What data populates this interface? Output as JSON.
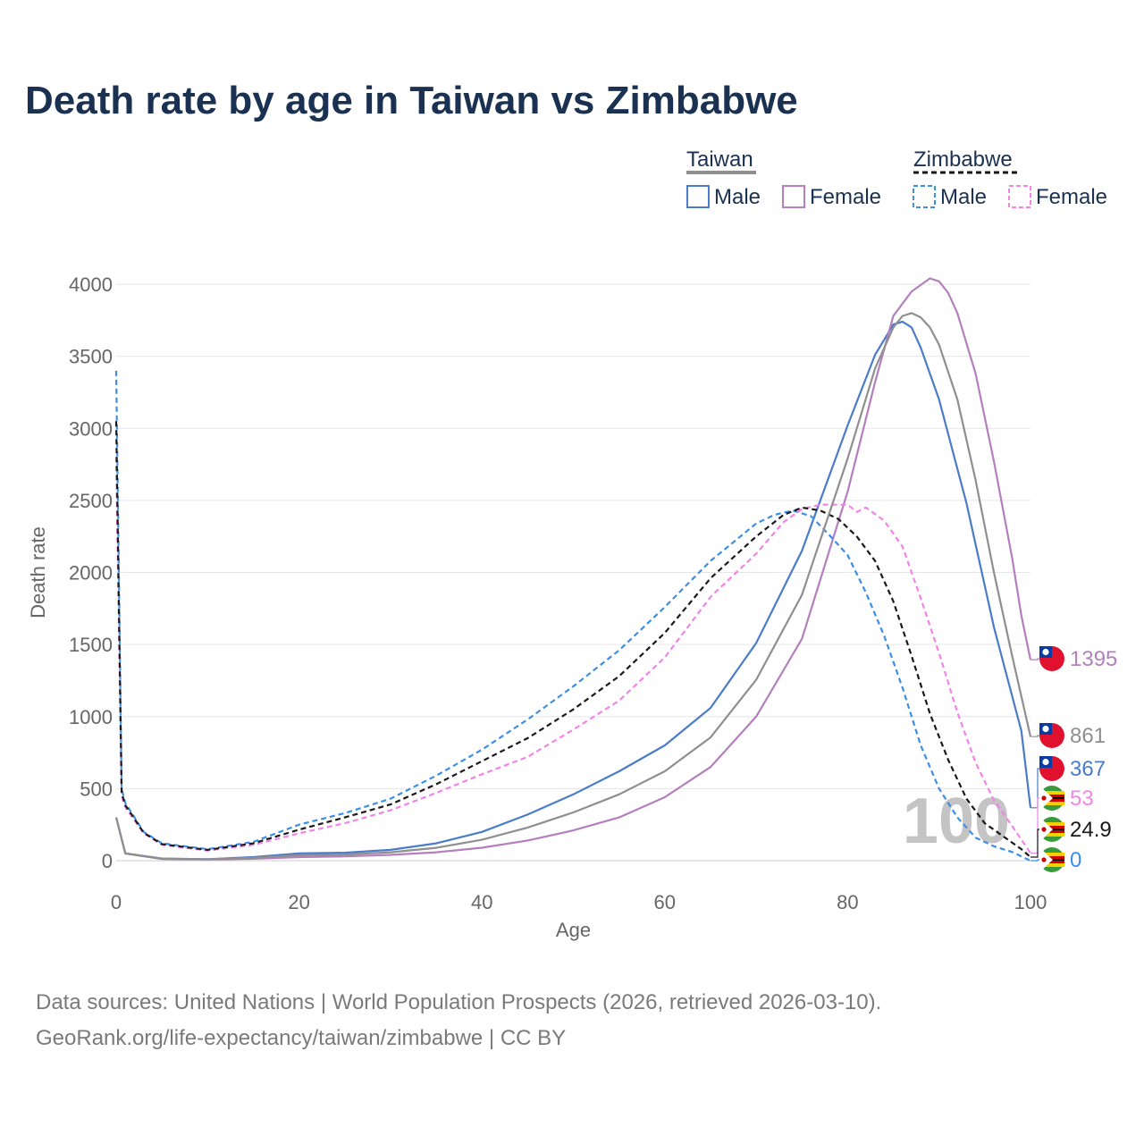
{
  "chart_data": {
    "type": "line",
    "title": "Death rate by age in Taiwan vs Zimbabwe",
    "xlabel": "Age",
    "ylabel": "Death rate",
    "xlim": [
      0,
      100
    ],
    "ylim": [
      0,
      4000
    ],
    "x_ticks": [
      "0",
      "20",
      "40",
      "60",
      "80",
      "100"
    ],
    "y_ticks": [
      "0",
      "500",
      "1000",
      "1500",
      "2000",
      "2500",
      "3000",
      "3500",
      "4000"
    ],
    "watermark_age": "100",
    "legend": {
      "groups": [
        {
          "country": "Taiwan",
          "items": [
            "Male",
            "Female"
          ]
        },
        {
          "country": "Zimbabwe",
          "items": [
            "Male",
            "Female"
          ]
        }
      ]
    },
    "series": [
      {
        "name": "Taiwan Male",
        "country": "Taiwan",
        "sex": "Male",
        "dashed": false,
        "color": "#4a7cc9",
        "end_label": "367",
        "points": [
          [
            0,
            300
          ],
          [
            1,
            50
          ],
          [
            5,
            15
          ],
          [
            10,
            10
          ],
          [
            15,
            25
          ],
          [
            20,
            50
          ],
          [
            25,
            55
          ],
          [
            30,
            75
          ],
          [
            35,
            120
          ],
          [
            40,
            200
          ],
          [
            45,
            320
          ],
          [
            50,
            460
          ],
          [
            55,
            620
          ],
          [
            60,
            800
          ],
          [
            65,
            1060
          ],
          [
            70,
            1510
          ],
          [
            75,
            2150
          ],
          [
            80,
            3020
          ],
          [
            83,
            3510
          ],
          [
            85,
            3720
          ],
          [
            86,
            3740
          ],
          [
            87,
            3700
          ],
          [
            88,
            3560
          ],
          [
            90,
            3200
          ],
          [
            93,
            2480
          ],
          [
            96,
            1620
          ],
          [
            99,
            900
          ],
          [
            100,
            367
          ]
        ]
      },
      {
        "name": "Taiwan Female",
        "country": "Taiwan",
        "sex": "Female",
        "dashed": false,
        "color": "#b47fbd",
        "end_label": "1395",
        "points": [
          [
            0,
            300
          ],
          [
            1,
            50
          ],
          [
            5,
            12
          ],
          [
            10,
            8
          ],
          [
            15,
            13
          ],
          [
            20,
            25
          ],
          [
            25,
            30
          ],
          [
            30,
            40
          ],
          [
            35,
            58
          ],
          [
            40,
            90
          ],
          [
            45,
            140
          ],
          [
            50,
            210
          ],
          [
            55,
            300
          ],
          [
            60,
            440
          ],
          [
            65,
            650
          ],
          [
            70,
            1000
          ],
          [
            75,
            1540
          ],
          [
            80,
            2560
          ],
          [
            83,
            3320
          ],
          [
            85,
            3780
          ],
          [
            87,
            3950
          ],
          [
            89,
            4040
          ],
          [
            90,
            4020
          ],
          [
            91,
            3940
          ],
          [
            92,
            3800
          ],
          [
            94,
            3380
          ],
          [
            96,
            2770
          ],
          [
            98,
            2100
          ],
          [
            99,
            1700
          ],
          [
            100,
            1395
          ]
        ]
      },
      {
        "name": "Zimbabwe Male",
        "country": "Zimbabwe",
        "sex": "Male",
        "dashed": true,
        "color": "#3d8ee6",
        "end_label": "0",
        "points": [
          [
            0,
            3400
          ],
          [
            0.6,
            500
          ],
          [
            1,
            400
          ],
          [
            2,
            300
          ],
          [
            3,
            200
          ],
          [
            5,
            120
          ],
          [
            10,
            80
          ],
          [
            15,
            130
          ],
          [
            20,
            250
          ],
          [
            25,
            330
          ],
          [
            30,
            430
          ],
          [
            35,
            590
          ],
          [
            40,
            770
          ],
          [
            45,
            980
          ],
          [
            50,
            1210
          ],
          [
            55,
            1460
          ],
          [
            60,
            1760
          ],
          [
            65,
            2080
          ],
          [
            70,
            2340
          ],
          [
            72,
            2400
          ],
          [
            74,
            2430
          ],
          [
            76,
            2390
          ],
          [
            78,
            2260
          ],
          [
            80,
            2120
          ],
          [
            82,
            1860
          ],
          [
            84,
            1560
          ],
          [
            86,
            1200
          ],
          [
            88,
            800
          ],
          [
            90,
            500
          ],
          [
            92,
            300
          ],
          [
            94,
            160
          ],
          [
            96,
            100
          ],
          [
            98,
            60
          ],
          [
            100,
            0
          ]
        ]
      },
      {
        "name": "Zimbabwe Female",
        "country": "Zimbabwe",
        "sex": "Female",
        "dashed": true,
        "color": "#f483e8",
        "end_label": "53",
        "points": [
          [
            0,
            2800
          ],
          [
            0.6,
            450
          ],
          [
            1,
            370
          ],
          [
            2,
            280
          ],
          [
            3,
            190
          ],
          [
            5,
            110
          ],
          [
            10,
            70
          ],
          [
            15,
            110
          ],
          [
            20,
            190
          ],
          [
            25,
            260
          ],
          [
            30,
            350
          ],
          [
            35,
            470
          ],
          [
            40,
            600
          ],
          [
            45,
            720
          ],
          [
            50,
            910
          ],
          [
            55,
            1110
          ],
          [
            60,
            1410
          ],
          [
            65,
            1830
          ],
          [
            70,
            2130
          ],
          [
            73,
            2350
          ],
          [
            75,
            2440
          ],
          [
            77,
            2470
          ],
          [
            80,
            2470
          ],
          [
            81,
            2420
          ],
          [
            82,
            2450
          ],
          [
            84,
            2360
          ],
          [
            86,
            2180
          ],
          [
            88,
            1820
          ],
          [
            90,
            1440
          ],
          [
            92,
            1030
          ],
          [
            94,
            680
          ],
          [
            96,
            420
          ],
          [
            98,
            240
          ],
          [
            100,
            53
          ]
        ]
      },
      {
        "name": "Zimbabwe Average",
        "country": "Zimbabwe",
        "sex": "Both",
        "dashed": true,
        "color": "#1a1a1a",
        "end_label": "24.9",
        "points": [
          [
            0,
            3050
          ],
          [
            0.6,
            470
          ],
          [
            1,
            385
          ],
          [
            2,
            290
          ],
          [
            3,
            195
          ],
          [
            5,
            115
          ],
          [
            10,
            75
          ],
          [
            15,
            120
          ],
          [
            20,
            215
          ],
          [
            25,
            300
          ],
          [
            30,
            390
          ],
          [
            35,
            530
          ],
          [
            40,
            690
          ],
          [
            45,
            850
          ],
          [
            50,
            1050
          ],
          [
            55,
            1280
          ],
          [
            60,
            1580
          ],
          [
            65,
            1960
          ],
          [
            70,
            2250
          ],
          [
            73,
            2400
          ],
          [
            75,
            2450
          ],
          [
            77,
            2430
          ],
          [
            79,
            2370
          ],
          [
            81,
            2250
          ],
          [
            83,
            2080
          ],
          [
            85,
            1800
          ],
          [
            87,
            1420
          ],
          [
            89,
            1020
          ],
          [
            91,
            700
          ],
          [
            93,
            430
          ],
          [
            95,
            260
          ],
          [
            97,
            170
          ],
          [
            99,
            80
          ],
          [
            100,
            24.9
          ]
        ]
      },
      {
        "name": "Taiwan Average",
        "country": "Taiwan",
        "sex": "Both",
        "dashed": false,
        "color": "#8f8f8f",
        "end_label": "861",
        "points": [
          [
            0,
            300
          ],
          [
            1,
            50
          ],
          [
            5,
            13
          ],
          [
            10,
            9
          ],
          [
            15,
            19
          ],
          [
            20,
            38
          ],
          [
            25,
            42
          ],
          [
            30,
            58
          ],
          [
            35,
            89
          ],
          [
            40,
            145
          ],
          [
            45,
            230
          ],
          [
            50,
            335
          ],
          [
            55,
            460
          ],
          [
            60,
            620
          ],
          [
            65,
            855
          ],
          [
            70,
            1255
          ],
          [
            75,
            1845
          ],
          [
            80,
            2790
          ],
          [
            83,
            3415
          ],
          [
            85,
            3700
          ],
          [
            86,
            3780
          ],
          [
            87,
            3800
          ],
          [
            88,
            3770
          ],
          [
            89,
            3700
          ],
          [
            90,
            3580
          ],
          [
            92,
            3200
          ],
          [
            94,
            2640
          ],
          [
            96,
            2000
          ],
          [
            98,
            1420
          ],
          [
            100,
            861
          ]
        ]
      }
    ]
  },
  "footer": {
    "line1": "Data sources: United Nations | World Population Prospects (2026, retrieved 2026-03-10).",
    "line2": "GeoRank.org/life-expectancy/taiwan/zimbabwe | CC BY"
  }
}
